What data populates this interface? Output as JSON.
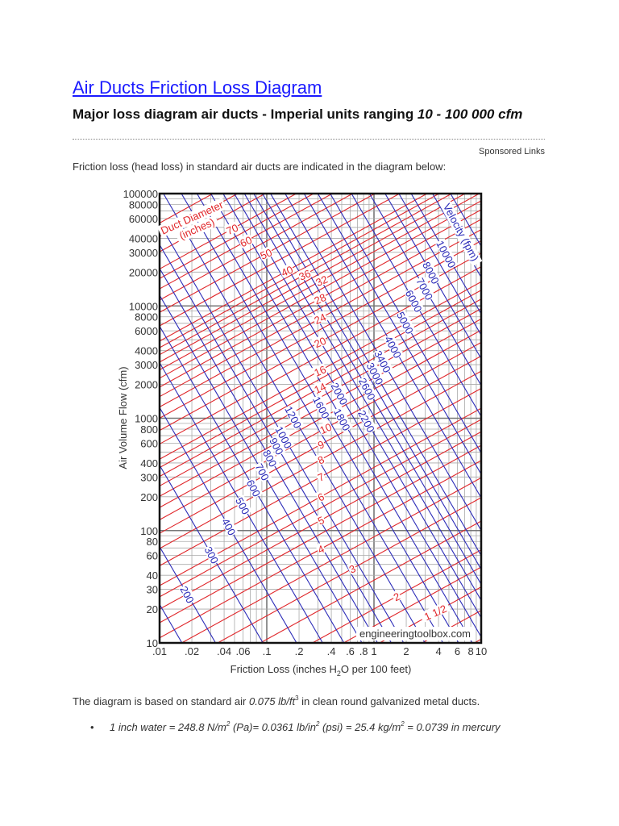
{
  "header": {
    "title": "Air Ducts Friction Loss Diagram",
    "subtitle_main": "Major loss diagram air ducts - Imperial units ranging ",
    "subtitle_italic": "10 - 100 000 cfm",
    "sponsored": "Sponsored Links",
    "intro": "Friction loss (head loss) in standard air ducts are indicated in the diagram below:"
  },
  "note": {
    "pre": "The diagram is based on standard air ",
    "italic": "0.075 lb/ft",
    "sup": "3",
    "post": " in clean round galvanized metal ducts."
  },
  "bullet": {
    "parts": [
      "1 inch water = 248.8 N/m",
      "2",
      " (Pa)= 0.0361 lb/in",
      "2",
      " (psi) = 25.4 kg/m",
      "2",
      " = 0.0739 in mercury"
    ]
  },
  "chart_data": {
    "type": "line",
    "xscale": "log",
    "yscale": "log",
    "xlim": [
      0.01,
      10
    ],
    "ylim": [
      10,
      100000
    ],
    "grid": true,
    "xlabel_pre": "Friction Loss (inches H",
    "xlabel_sub": "2",
    "xlabel_post": "O per 100 feet)",
    "ylabel": "Air Volume Flow (cfm)",
    "xticks": [
      ".01",
      ".02",
      ".04",
      ".06",
      ".1",
      ".2",
      ".4",
      ".6",
      ".8",
      "1",
      "2",
      "4",
      "6",
      "8",
      "10"
    ],
    "xtick_values": [
      0.01,
      0.02,
      0.04,
      0.06,
      0.1,
      0.2,
      0.4,
      0.6,
      0.8,
      1,
      2,
      4,
      6,
      8,
      10
    ],
    "yticks": [
      "100000",
      "80000",
      "60000",
      "40000",
      "30000",
      "20000",
      "10000",
      "8000",
      "6000",
      "4000",
      "3000",
      "2000",
      "1000",
      "800",
      "600",
      "400",
      "300",
      "200",
      "100",
      "80",
      "60",
      "40",
      "30",
      "20",
      "10"
    ],
    "ytick_values": [
      100000,
      80000,
      60000,
      40000,
      30000,
      20000,
      10000,
      8000,
      6000,
      4000,
      3000,
      2000,
      1000,
      800,
      600,
      400,
      300,
      200,
      100,
      80,
      60,
      40,
      30,
      20,
      10
    ],
    "diameter_series": {
      "title": "Duct Diameter",
      "units": "(inches)",
      "color": "#e0262a",
      "labeled": [
        [
          "70",
          70
        ],
        [
          "60",
          60
        ],
        [
          "50",
          50
        ],
        [
          "40",
          40
        ],
        [
          "36",
          36
        ],
        [
          "32",
          32
        ],
        [
          "28",
          28
        ],
        [
          "24",
          24
        ],
        [
          "20",
          20
        ],
        [
          "16",
          16
        ],
        [
          "14",
          14
        ],
        [
          "10",
          10
        ],
        [
          "9",
          9
        ],
        [
          "8",
          8
        ],
        [
          "7",
          7
        ],
        [
          "6",
          6
        ],
        [
          "5",
          5
        ],
        [
          "4",
          4
        ],
        [
          "3",
          3
        ],
        [
          "2",
          2
        ],
        [
          "1 1/2",
          1.5
        ]
      ],
      "all_lines": [
        1,
        1.25,
        1.5,
        1.75,
        2,
        2.5,
        3,
        3.5,
        4,
        4.5,
        5,
        5.5,
        6,
        7,
        8,
        9,
        10,
        11,
        12,
        13,
        14,
        15,
        16,
        18,
        20,
        22,
        24,
        26,
        28,
        30,
        32,
        34,
        36,
        38,
        40,
        45,
        50,
        55,
        60,
        65,
        70,
        80,
        90,
        100
      ]
    },
    "velocity_series": {
      "title": "Velocity (fpm)",
      "color": "#2b2bb8",
      "labeled": [
        [
          "200",
          200
        ],
        [
          "300",
          300
        ],
        [
          "400",
          400
        ],
        [
          "500",
          500
        ],
        [
          "600",
          600
        ],
        [
          "700",
          700
        ],
        [
          "800",
          800
        ],
        [
          "900",
          900
        ],
        [
          "1000",
          1000
        ],
        [
          "1200",
          1200
        ],
        [
          "1600",
          1600
        ],
        [
          "1800",
          1800
        ],
        [
          "2000",
          2000
        ],
        [
          "2200",
          2200
        ],
        [
          "2600",
          2600
        ],
        [
          "3000",
          3000
        ],
        [
          "3400",
          3400
        ],
        [
          "4000",
          4000
        ],
        [
          "5000",
          5000
        ],
        [
          "6000",
          6000
        ],
        [
          "7000",
          7000
        ],
        [
          "8000",
          8000
        ],
        [
          "10000",
          10000
        ]
      ],
      "all_lines": [
        100,
        150,
        200,
        300,
        400,
        500,
        600,
        700,
        800,
        900,
        1000,
        1200,
        1400,
        1600,
        1800,
        2000,
        2200,
        2400,
        2600,
        2800,
        3000,
        3400,
        4000,
        4500,
        5000,
        6000,
        7000,
        8000,
        9000,
        10000,
        12000,
        14000
      ]
    },
    "watermark": "engineeringtoolbox.com"
  }
}
